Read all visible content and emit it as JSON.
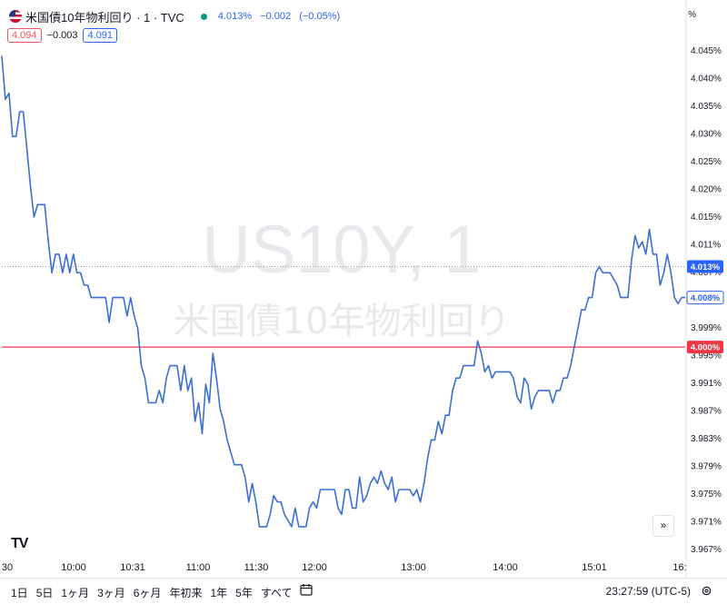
{
  "header": {
    "title": "米国債10年物利回り · 1 · TVC",
    "quote_last": "4.013%",
    "quote_change": "−0.002",
    "quote_change_pct": "(−0.05%)",
    "bid": "4.094",
    "spread": "−0.003",
    "ask": "4.091",
    "scale_unit": "%",
    "status_color": "#089981"
  },
  "watermark": {
    "symbol": "US10Y, 1",
    "name": "米国債10年物利回り"
  },
  "chart_data": {
    "type": "line",
    "x_tick_labels": [
      "30",
      "10:00",
      "10:31",
      "11:00",
      "11:30",
      "12:00",
      "13:00",
      "14:00",
      "15:01",
      "16:"
    ],
    "y_tick_labels": [
      "4.045%",
      "4.040%",
      "4.035%",
      "4.030%",
      "4.025%",
      "4.020%",
      "4.015%",
      "4.011%",
      "4.007%",
      "4.003%",
      "3.999%",
      "3.995%",
      "3.991%",
      "3.987%",
      "3.983%",
      "3.979%",
      "3.975%",
      "3.971%",
      "3.967%"
    ],
    "ylim": [
      3.966,
      4.049
    ],
    "x_index_range": [
      0,
      376
    ],
    "line_color": "#3b6fd4",
    "series": [
      {
        "values": [
          4.047,
          4.04,
          4.041,
          4.034,
          4.034,
          4.038,
          4.038,
          4.032,
          4.026,
          4.021,
          4.023,
          4.023,
          4.023,
          4.017,
          4.012,
          4.015,
          4.015,
          4.012,
          4.015,
          4.012,
          4.015,
          4.012,
          4.012,
          4.01,
          4.01,
          4.008,
          4.008,
          4.008,
          4.008,
          4.008,
          4.004,
          4.008,
          4.008,
          4.008,
          4.008,
          4.005,
          4.008,
          4.005,
          4.003,
          3.997,
          3.995,
          3.991,
          3.991,
          3.991,
          3.993,
          3.991,
          3.995,
          3.997,
          3.997,
          3.997,
          3.993,
          3.997,
          3.993,
          3.995,
          3.988,
          3.991,
          3.986,
          3.994,
          3.991,
          3.999,
          3.995,
          3.99,
          3.988,
          3.985,
          3.983,
          3.981,
          3.981,
          3.981,
          3.979,
          3.975,
          3.978,
          3.975,
          3.971,
          3.971,
          3.971,
          3.973,
          3.976,
          3.975,
          3.975,
          3.973,
          3.972,
          3.971,
          3.974,
          3.971,
          3.971,
          3.971,
          3.974,
          3.975,
          3.974,
          3.977,
          3.977,
          3.977,
          3.977,
          3.977,
          3.974,
          3.973,
          3.977,
          3.977,
          3.974,
          3.974,
          3.979,
          3.975,
          3.976,
          3.978,
          3.979,
          3.978,
          3.98,
          3.978,
          3.977,
          3.979,
          3.975,
          3.977,
          3.977,
          3.977,
          3.977,
          3.976,
          3.977,
          3.975,
          3.978,
          3.982,
          3.985,
          3.985,
          3.988,
          3.986,
          3.989,
          3.989,
          3.993,
          3.995,
          3.995,
          3.997,
          3.997,
          3.997,
          3.997,
          4.001,
          3.999,
          3.996,
          3.997,
          3.995,
          3.996,
          3.996,
          3.996,
          3.996,
          3.996,
          3.995,
          3.992,
          3.991,
          3.995,
          3.994,
          3.99,
          3.992,
          3.993,
          3.993,
          3.993,
          3.993,
          3.991,
          3.993,
          3.993,
          3.995,
          3.995,
          3.997,
          4.0,
          4.003,
          4.006,
          4.006,
          4.008,
          4.008,
          4.012,
          4.013,
          4.012,
          4.012,
          4.012,
          4.011,
          4.01,
          4.008,
          4.008,
          4.008,
          4.014,
          4.018,
          4.016,
          4.017,
          4.015,
          4.019,
          4.015,
          4.015,
          4.01,
          4.012,
          4.015,
          4.012,
          4.008,
          4.007,
          4.008,
          4.008
        ]
      }
    ],
    "price_tags": [
      {
        "label": "4.013%",
        "value": 4.013,
        "style": "filled",
        "color": "#2962ff"
      },
      {
        "label": "4.008%",
        "value": 4.008,
        "style": "outline",
        "color": "#2962ff"
      },
      {
        "label": "4.000%",
        "value": 4.0,
        "style": "filled",
        "color": "#f23645"
      }
    ],
    "horizontal_line": {
      "value": 4.0,
      "color": "#f23645"
    },
    "dotted_line": {
      "value": 4.013,
      "color": "#9598a1"
    },
    "grid": false
  },
  "bottombar": {
    "ranges": [
      "1日",
      "5日",
      "1ヶ月",
      "3ヶ月",
      "6ヶ月",
      "年初来",
      "1年",
      "5年",
      "すべて"
    ],
    "clock": "23:27:59 (UTC-5)"
  }
}
